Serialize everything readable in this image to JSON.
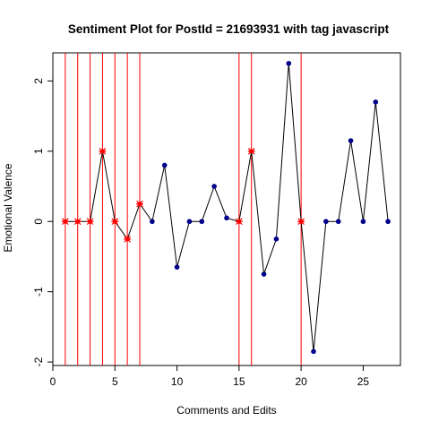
{
  "chart_data": {
    "type": "line",
    "title": "Sentiment Plot for PostId =  21693931  with tag  javascript",
    "xlabel": "Comments and Edits",
    "ylabel": "Emotional Valence",
    "xlim": [
      0,
      28
    ],
    "ylim": [
      -2.05,
      2.4
    ],
    "x_ticks": [
      0,
      5,
      10,
      15,
      20,
      25
    ],
    "y_ticks": [
      -2,
      -1,
      0,
      1,
      2
    ],
    "grid": false,
    "x": [
      1,
      2,
      3,
      4,
      5,
      6,
      7,
      8,
      9,
      10,
      11,
      12,
      13,
      14,
      15,
      16,
      17,
      18,
      19,
      20,
      21,
      22,
      23,
      24,
      25,
      26,
      27
    ],
    "y": [
      0,
      0,
      0,
      1,
      0,
      -0.25,
      0.25,
      0,
      0.8,
      -0.65,
      0,
      0,
      0.5,
      0.05,
      0,
      1,
      -0.75,
      -0.25,
      2.25,
      0,
      -1.85,
      0,
      0,
      1.15,
      0,
      1.7,
      0
    ],
    "edit_points": [
      1,
      2,
      3,
      4,
      5,
      6,
      7,
      15,
      16,
      20
    ],
    "vertical_lines": [
      1,
      2,
      3,
      4,
      5,
      6,
      7,
      15,
      16,
      20
    ],
    "colors": {
      "line": "#000000",
      "comment_point": "#00008b",
      "edit_point": "#ff0000",
      "vertical_line": "#ff0000"
    }
  }
}
